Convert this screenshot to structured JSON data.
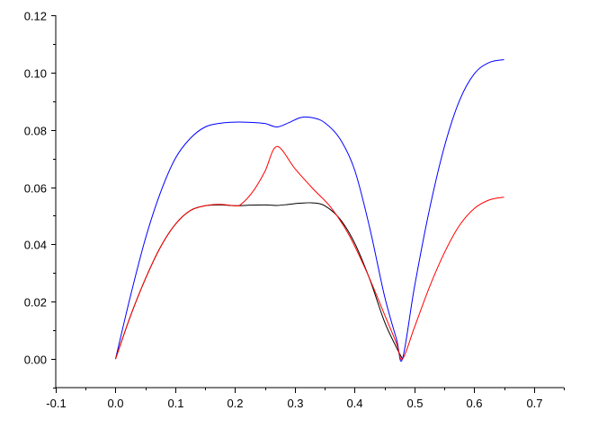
{
  "chart_data": {
    "type": "line",
    "title": "",
    "xlabel": "",
    "ylabel": "",
    "xlim": [
      -0.1,
      0.75
    ],
    "ylim": [
      -0.01,
      0.12
    ],
    "x_ticks": [
      -0.1,
      0.0,
      0.1,
      0.2,
      0.3,
      0.4,
      0.5,
      0.6,
      0.7
    ],
    "x_tick_labels": [
      "-0.1",
      "0.0",
      "0.1",
      "0.2",
      "0.3",
      "0.4",
      "0.5",
      "0.6",
      "0.7"
    ],
    "y_ticks": [
      0.0,
      0.02,
      0.04,
      0.06,
      0.08,
      0.1,
      0.12
    ],
    "y_tick_labels": [
      "0.00",
      "0.02",
      "0.04",
      "0.06",
      "0.08",
      "0.10",
      "0.12"
    ],
    "grid": false,
    "legend": "none",
    "series": [
      {
        "color": "#0000ff",
        "x": [
          0.0,
          0.025,
          0.05,
          0.075,
          0.1,
          0.125,
          0.15,
          0.175,
          0.2,
          0.225,
          0.25,
          0.27,
          0.29,
          0.31,
          0.33,
          0.35,
          0.375,
          0.4,
          0.425,
          0.45,
          0.47,
          0.48,
          0.5,
          0.525,
          0.55,
          0.575,
          0.6,
          0.625,
          0.65
        ],
        "y": [
          0.0,
          0.022,
          0.042,
          0.058,
          0.07,
          0.077,
          0.081,
          0.0823,
          0.0827,
          0.0826,
          0.0822,
          0.081,
          0.0825,
          0.0843,
          0.0842,
          0.0825,
          0.077,
          0.066,
          0.046,
          0.022,
          0.007,
          0.0,
          0.025,
          0.052,
          0.074,
          0.09,
          0.0995,
          0.1035,
          0.1045
        ]
      },
      {
        "color": "#000000",
        "x": [
          0.0,
          0.025,
          0.05,
          0.075,
          0.1,
          0.125,
          0.15,
          0.175,
          0.2,
          0.225,
          0.25,
          0.27,
          0.29,
          0.31,
          0.33,
          0.35,
          0.375,
          0.4,
          0.425,
          0.45,
          0.47,
          0.48
        ],
        "y": [
          0.0,
          0.015,
          0.028,
          0.039,
          0.047,
          0.0518,
          0.0535,
          0.0538,
          0.0535,
          0.0537,
          0.0538,
          0.0536,
          0.054,
          0.0544,
          0.0545,
          0.0535,
          0.049,
          0.0405,
          0.028,
          0.013,
          0.004,
          0.0
        ]
      },
      {
        "color": "#ff0000",
        "x": [
          0.0,
          0.025,
          0.05,
          0.075,
          0.1,
          0.125,
          0.15,
          0.175,
          0.2,
          0.21,
          0.23,
          0.25,
          0.27,
          0.3,
          0.33,
          0.36,
          0.39,
          0.42,
          0.45,
          0.47,
          0.48,
          0.5,
          0.525,
          0.55,
          0.575,
          0.6,
          0.625,
          0.65
        ],
        "y": [
          0.0,
          0.015,
          0.028,
          0.039,
          0.047,
          0.0518,
          0.0535,
          0.054,
          0.0535,
          0.054,
          0.0585,
          0.0655,
          0.0742,
          0.0665,
          0.0595,
          0.053,
          0.0435,
          0.0305,
          0.0155,
          0.0055,
          0.0,
          0.011,
          0.025,
          0.037,
          0.0465,
          0.0525,
          0.0555,
          0.0565
        ]
      }
    ]
  }
}
